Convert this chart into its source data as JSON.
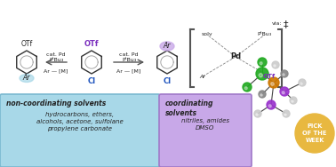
{
  "bg_color": "#ffffff",
  "box1_color": "#a8d8e8",
  "box1_edge": "#7ab8d0",
  "box2_color": "#c8a8e8",
  "box2_edge": "#a078c8",
  "box1_title": "non-coordinating solvents",
  "box1_body": "hydrocarbons, ethers,\nalcohols, acetone, sulfolane\npropylene carbonate",
  "box2_title": "coordinating\nsolvents",
  "box2_body": "nitriles, amides\nDMSO",
  "badge_color": "#e8b840",
  "badge_text": "PICK\nOF THE\nWEEK",
  "badge_text_color": "#ffffff",
  "otf_color": "#7b2fbe",
  "cl_color": "#2055be",
  "arrow_color": "#555555",
  "text_color": "#222222",
  "bracket_color": "#555555",
  "dagger": "‡"
}
